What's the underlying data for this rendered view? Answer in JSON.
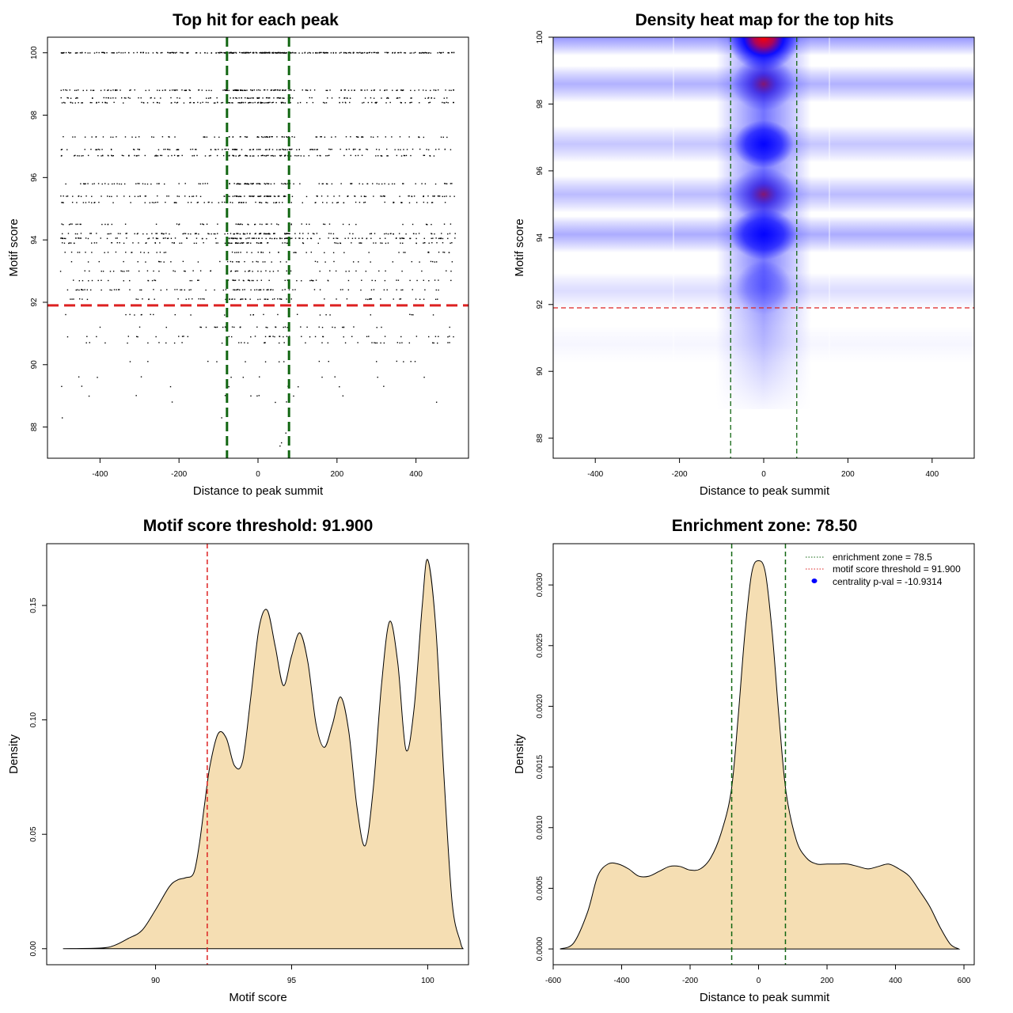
{
  "colors": {
    "threshold": "#dd2222",
    "zone": "#116611",
    "fill": "#f5deb3",
    "heat_low": "#ffffff",
    "heat_mid": "#0000ff",
    "heat_high": "#ff0000"
  },
  "chart_data": [
    {
      "type": "scatter",
      "title": "Top hit for each peak",
      "xlabel": "Distance to peak summit",
      "ylabel": "Motif score",
      "xlim": [
        -533,
        533
      ],
      "ylim": [
        87,
        100.5
      ],
      "xticks": [
        -400,
        -200,
        0,
        200,
        400
      ],
      "yticks": [
        88,
        90,
        92,
        94,
        96,
        98,
        100
      ],
      "hlines": [
        91.9
      ],
      "vlines": [
        -78.5,
        78.5
      ],
      "score_levels": [
        {
          "y": 100.0,
          "n": 340
        },
        {
          "y": 98.8,
          "n": 170
        },
        {
          "y": 98.55,
          "n": 110
        },
        {
          "y": 98.4,
          "n": 150
        },
        {
          "y": 97.3,
          "n": 90
        },
        {
          "y": 96.9,
          "n": 120
        },
        {
          "y": 96.7,
          "n": 130
        },
        {
          "y": 95.8,
          "n": 120
        },
        {
          "y": 95.4,
          "n": 130
        },
        {
          "y": 95.2,
          "n": 90
        },
        {
          "y": 94.5,
          "n": 60
        },
        {
          "y": 94.2,
          "n": 130
        },
        {
          "y": 94.05,
          "n": 140
        },
        {
          "y": 93.9,
          "n": 100
        },
        {
          "y": 93.6,
          "n": 55
        },
        {
          "y": 93.3,
          "n": 45
        },
        {
          "y": 93.0,
          "n": 55
        },
        {
          "y": 92.7,
          "n": 60
        },
        {
          "y": 92.4,
          "n": 80
        },
        {
          "y": 92.1,
          "n": 70
        },
        {
          "y": 91.6,
          "n": 25
        },
        {
          "y": 91.2,
          "n": 40
        },
        {
          "y": 90.9,
          "n": 45
        },
        {
          "y": 90.7,
          "n": 40
        },
        {
          "y": 90.1,
          "n": 15
        },
        {
          "y": 89.6,
          "n": 10
        },
        {
          "y": 89.3,
          "n": 8
        },
        {
          "y": 89.0,
          "n": 8
        },
        {
          "y": 88.8,
          "n": 4
        },
        {
          "y": 88.3,
          "n": 2
        },
        {
          "y": 87.8,
          "n": 1
        },
        {
          "y": 87.5,
          "n": 1
        },
        {
          "y": 87.4,
          "n": 1
        }
      ]
    },
    {
      "type": "heatmap",
      "title": "Density heat map for the top hits",
      "xlabel": "Distance to peak summit",
      "ylabel": "Motif score",
      "xlim": [
        -500,
        500
      ],
      "ylim": [
        87.4,
        100
      ],
      "xticks": [
        -400,
        -200,
        0,
        200,
        400
      ],
      "yticks": [
        88,
        90,
        92,
        94,
        96,
        98,
        100
      ],
      "hlines": [
        91.9
      ],
      "vlines": [
        -78.5,
        78.5
      ],
      "score_rows": [
        {
          "y": 100.0,
          "w": 1.0
        },
        {
          "y": 98.6,
          "w": 0.75
        },
        {
          "y": 96.8,
          "w": 0.55
        },
        {
          "y": 95.3,
          "w": 0.65
        },
        {
          "y": 94.1,
          "w": 0.8
        },
        {
          "y": 92.4,
          "w": 0.4
        },
        {
          "y": 90.8,
          "w": 0.18
        }
      ]
    },
    {
      "type": "area",
      "title": "Motif score threshold: 91.900",
      "xlabel": "Motif score",
      "ylabel": "Density",
      "xlim": [
        86.0,
        101.5
      ],
      "ylim": [
        -0.007,
        0.177
      ],
      "xticks": [
        90,
        95,
        100
      ],
      "yticks": [
        0.0,
        0.05,
        0.1,
        0.15
      ],
      "ytick_labels": [
        "0.00",
        "0.05",
        "0.10",
        "0.15"
      ],
      "vlines": [
        91.9
      ],
      "x": [
        86.6,
        88.0,
        88.5,
        89.0,
        89.5,
        90.0,
        90.5,
        90.8,
        91.1,
        91.4,
        91.6,
        91.8,
        92.0,
        92.3,
        92.6,
        92.9,
        93.2,
        93.5,
        93.8,
        94.1,
        94.4,
        94.7,
        95.0,
        95.3,
        95.6,
        95.9,
        96.2,
        96.5,
        96.8,
        97.1,
        97.4,
        97.7,
        98.0,
        98.3,
        98.6,
        98.9,
        99.2,
        99.5,
        99.8,
        100.0,
        100.3,
        100.6,
        100.9,
        101.2,
        101.3
      ],
      "y": [
        0.0,
        0.0003,
        0.0015,
        0.0045,
        0.008,
        0.017,
        0.027,
        0.03,
        0.031,
        0.033,
        0.045,
        0.063,
        0.08,
        0.094,
        0.092,
        0.08,
        0.082,
        0.11,
        0.14,
        0.148,
        0.132,
        0.115,
        0.128,
        0.138,
        0.125,
        0.098,
        0.088,
        0.098,
        0.11,
        0.095,
        0.062,
        0.045,
        0.07,
        0.115,
        0.143,
        0.125,
        0.087,
        0.105,
        0.15,
        0.17,
        0.14,
        0.075,
        0.02,
        0.003,
        0.0
      ]
    },
    {
      "type": "area",
      "title": "Enrichment zone: 78.50",
      "xlabel": "Distance to peak summit",
      "ylabel": "Density",
      "xlim": [
        -600,
        630
      ],
      "ylim": [
        -0.00013,
        0.00334
      ],
      "xticks": [
        -600,
        -400,
        -200,
        0,
        200,
        400,
        600
      ],
      "yticks": [
        0.0,
        0.0005,
        0.001,
        0.0015,
        0.002,
        0.0025,
        0.003
      ],
      "ytick_labels": [
        "0.0000",
        "0.0005",
        "0.0010",
        "0.0015",
        "0.0020",
        "0.0025",
        "0.0030"
      ],
      "vlines": [
        -78.5,
        78.5
      ],
      "x": [
        -580,
        -540,
        -500,
        -470,
        -440,
        -410,
        -380,
        -350,
        -320,
        -290,
        -260,
        -230,
        -200,
        -170,
        -140,
        -110,
        -80,
        -60,
        -40,
        -20,
        0,
        20,
        40,
        60,
        80,
        110,
        140,
        170,
        200,
        230,
        260,
        290,
        320,
        350,
        380,
        410,
        440,
        470,
        500,
        530,
        560,
        585
      ],
      "y": [
        0.0,
        5e-05,
        0.0003,
        0.0006,
        0.0007,
        0.0007,
        0.00066,
        0.0006,
        0.0006,
        0.00064,
        0.00068,
        0.00068,
        0.00065,
        0.00066,
        0.00075,
        0.00095,
        0.0013,
        0.0019,
        0.0026,
        0.0031,
        0.0032,
        0.0031,
        0.0026,
        0.0019,
        0.0013,
        0.0009,
        0.00075,
        0.0007,
        0.0007,
        0.0007,
        0.0007,
        0.00068,
        0.00066,
        0.00068,
        0.0007,
        0.00066,
        0.0006,
        0.00048,
        0.00035,
        0.00018,
        4e-05,
        0.0
      ],
      "legend": [
        {
          "label": "enrichment zone = 78.5",
          "style": "dotted",
          "color": "#116611"
        },
        {
          "label": "motif score threshold = 91.900",
          "style": "dotted",
          "color": "#dd2222"
        },
        {
          "label": "centrality p-val = -10.9314",
          "style": "dot",
          "color": "#0000ff"
        }
      ]
    }
  ]
}
